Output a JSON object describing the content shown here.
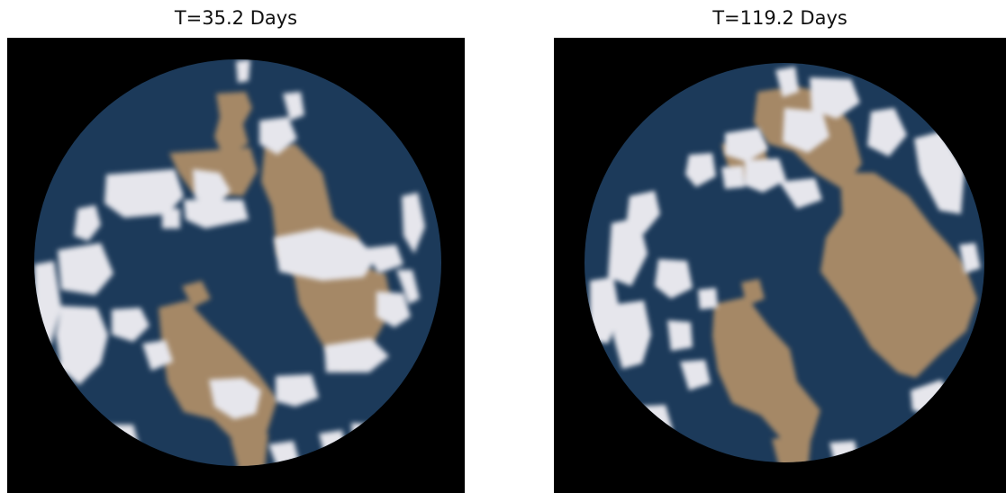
{
  "panels": [
    {
      "title": "T=35.2 Days"
    },
    {
      "title": "T=119.2 Days"
    }
  ],
  "colors": {
    "space": "#000000",
    "ocean": "#1c3a5a",
    "land": "#a58866",
    "cloud": "#e6e6ec"
  }
}
